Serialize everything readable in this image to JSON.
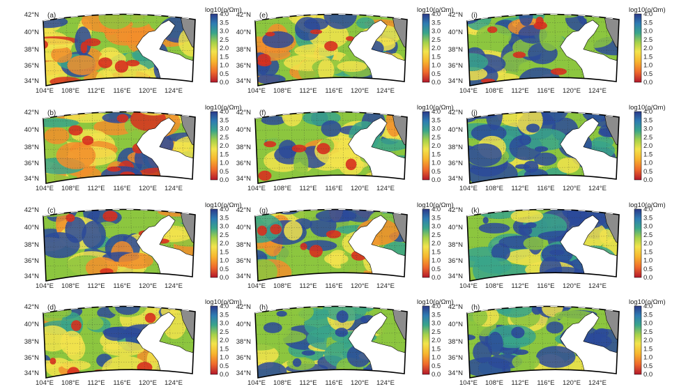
{
  "figure": {
    "colorbar_title": "log10(ρ/Ωm)",
    "colorbar_ticks": [
      "4.0",
      "3.5",
      "3.0",
      "2.5",
      "2.0",
      "1.5",
      "1.0",
      "0.5",
      "0.0"
    ],
    "lat_labels": [
      "42°N",
      "40°N",
      "38°N",
      "36°N",
      "34°N"
    ],
    "lon_labels": [
      "104°E",
      "108°E",
      "112°E",
      "116°E",
      "120°E",
      "124°E"
    ],
    "colors": {
      "low": "#d7301f",
      "orange": "#f28e2b",
      "yellow": "#f2e34c",
      "green": "#8cc63f",
      "teal": "#3aa58a",
      "blue": "#2b4a9a",
      "sea": "#ffffff",
      "land_gray": "#8c8c8c",
      "frame": "#000000"
    }
  },
  "panels": [
    {
      "id": "a",
      "label": "(a)",
      "theme": "warm"
    },
    {
      "id": "b",
      "label": "(b)",
      "theme": "warm"
    },
    {
      "id": "c",
      "label": "(c)",
      "theme": "mixed"
    },
    {
      "id": "d",
      "label": "(d)",
      "theme": "mixed"
    },
    {
      "id": "e",
      "label": "(e)",
      "theme": "mixed"
    },
    {
      "id": "f",
      "label": "(f)",
      "theme": "mixed"
    },
    {
      "id": "g",
      "label": "(g)",
      "theme": "mixed"
    },
    {
      "id": "h1",
      "label": "(h)",
      "theme": "cool"
    },
    {
      "id": "i",
      "label": "(i)",
      "theme": "mixed"
    },
    {
      "id": "j",
      "label": "(j)",
      "theme": "cool"
    },
    {
      "id": "k",
      "label": "(k)",
      "theme": "cool"
    },
    {
      "id": "h2",
      "label": "(h)",
      "theme": "cool"
    }
  ]
}
